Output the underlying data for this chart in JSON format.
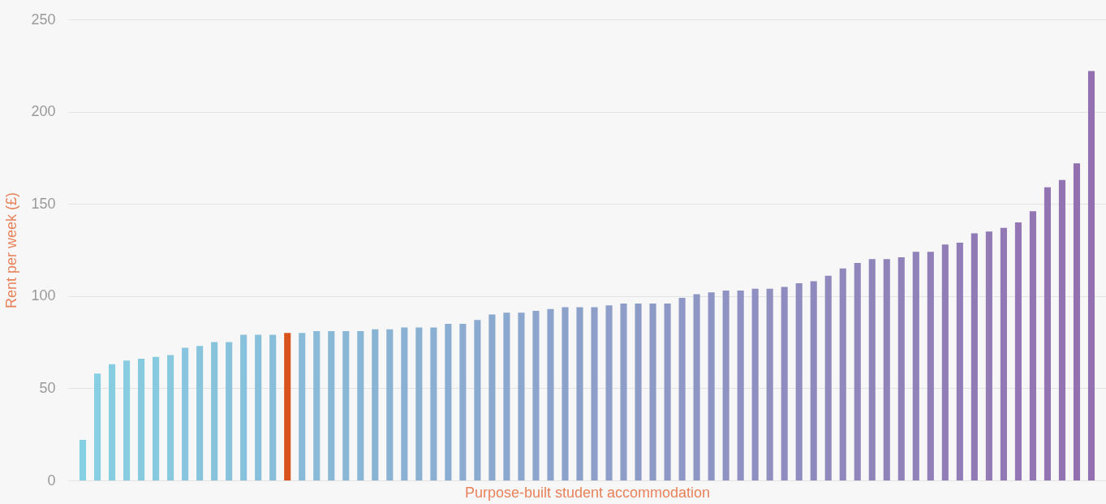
{
  "chart_data": {
    "type": "bar",
    "xlabel": "Purpose-built student accommodation",
    "ylabel": "Rent per week (£)",
    "categories": [
      null,
      null,
      null,
      null,
      null,
      null,
      null,
      null,
      null,
      null,
      null,
      null,
      null,
      null,
      null,
      null,
      null,
      null,
      null,
      null,
      null,
      null,
      null,
      null,
      null,
      null,
      null,
      null,
      null,
      null,
      null,
      null,
      null,
      null,
      null,
      null,
      null,
      null,
      null,
      null,
      null,
      null,
      null,
      null,
      null,
      null,
      null,
      null,
      null,
      null,
      null,
      null,
      null,
      null,
      null,
      null,
      null,
      null,
      null,
      null,
      null,
      null,
      null,
      null,
      null,
      null,
      null,
      null,
      null,
      null
    ],
    "values": [
      22,
      58,
      63,
      65,
      66,
      67,
      68,
      72,
      73,
      75,
      75,
      79,
      79,
      79,
      80,
      80,
      81,
      81,
      81,
      81,
      82,
      82,
      83,
      83,
      83,
      85,
      85,
      87,
      90,
      91,
      91,
      92,
      93,
      94,
      94,
      94,
      95,
      96,
      96,
      96,
      96,
      99,
      101,
      102,
      103,
      103,
      104,
      104,
      105,
      107,
      108,
      111,
      115,
      118,
      120,
      120,
      121,
      124,
      124,
      128,
      129,
      134,
      135,
      137,
      140,
      146,
      159,
      163,
      172,
      222
    ],
    "colors": [
      "#86d0e3",
      "#86cfe2",
      "#86cde2",
      "#87cce1",
      "#87cae0",
      "#87c9df",
      "#87c8df",
      "#87c6de",
      "#88c5dd",
      "#88c3dc",
      "#88c2dc",
      "#88c1db",
      "#88bfda",
      "#88bed9",
      "#d9531e",
      "#89bbd8",
      "#89bad7",
      "#89b8d6",
      "#89b7d6",
      "#8ab6d5",
      "#8ab4d4",
      "#8ab3d3",
      "#8ab1d3",
      "#8ab0d2",
      "#8bafd1",
      "#8badd1",
      "#8bacd0",
      "#8baacf",
      "#8ba9ce",
      "#8ba8ce",
      "#8ca6cd",
      "#8ca5cc",
      "#8ca3cb",
      "#8ca2cb",
      "#8ca1ca",
      "#8d9fc9",
      "#8d9ec8",
      "#8d9dc8",
      "#8d9bc7",
      "#8d9ac6",
      "#8e98c5",
      "#8e97c5",
      "#8e96c4",
      "#8e94c3",
      "#8e93c2",
      "#8e91c2",
      "#8f90c1",
      "#8f8fc0",
      "#8f8dc0",
      "#8f8cbf",
      "#8f8abe",
      "#9089bd",
      "#9088bd",
      "#9086bc",
      "#9085bb",
      "#9083ba",
      "#9182ba",
      "#9181b9",
      "#917fb8",
      "#917eb7",
      "#917db7",
      "#917bb6",
      "#927ab5",
      "#9278b4",
      "#9277b4",
      "#9276b3",
      "#9274b2",
      "#9373b1",
      "#9371b1",
      "#9370b0"
    ],
    "ylim": [
      0,
      250
    ],
    "yticks": [
      0,
      50,
      100,
      150,
      200,
      250
    ],
    "grid": "y",
    "tick_labels": "y"
  }
}
